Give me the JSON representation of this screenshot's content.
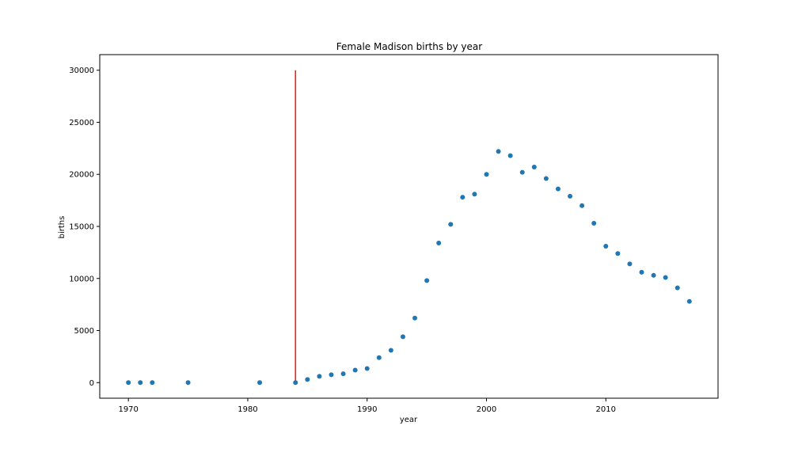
{
  "chart_data": {
    "type": "scatter",
    "title": "Female Madison births by year",
    "xlabel": "year",
    "ylabel": "births",
    "xlim": [
      1967.6,
      2019.4
    ],
    "ylim": [
      -1500,
      31500
    ],
    "xticks": [
      1970,
      1980,
      1990,
      2000,
      2010
    ],
    "yticks": [
      0,
      5000,
      10000,
      15000,
      20000,
      25000,
      30000
    ],
    "grid": false,
    "point_color": "#1f77b4",
    "series": [
      {
        "x": [
          1970,
          1971,
          1972,
          1975,
          1981,
          1984,
          1985,
          1986,
          1987,
          1988,
          1989,
          1990,
          1991,
          1992,
          1993,
          1994,
          1995,
          1996,
          1997,
          1998,
          1999,
          2000,
          2001,
          2002,
          2003,
          2004,
          2005,
          2006,
          2007,
          2008,
          2009,
          2010,
          2011,
          2012,
          2013,
          2014,
          2015,
          2016,
          2017
        ],
        "y": [
          5,
          5,
          5,
          5,
          5,
          5,
          300,
          600,
          750,
          850,
          1200,
          1350,
          2400,
          3100,
          4400,
          6200,
          9800,
          13400,
          15200,
          17800,
          18100,
          20000,
          22200,
          21800,
          20200,
          20700,
          19600,
          18600,
          17900,
          17000,
          15300,
          13100,
          12400,
          11400,
          10600,
          10300,
          10100,
          9100,
          7800
        ]
      }
    ],
    "vline": {
      "x": 1984,
      "y_from": 0,
      "y_to": 30000,
      "color": "#e8281c"
    }
  }
}
